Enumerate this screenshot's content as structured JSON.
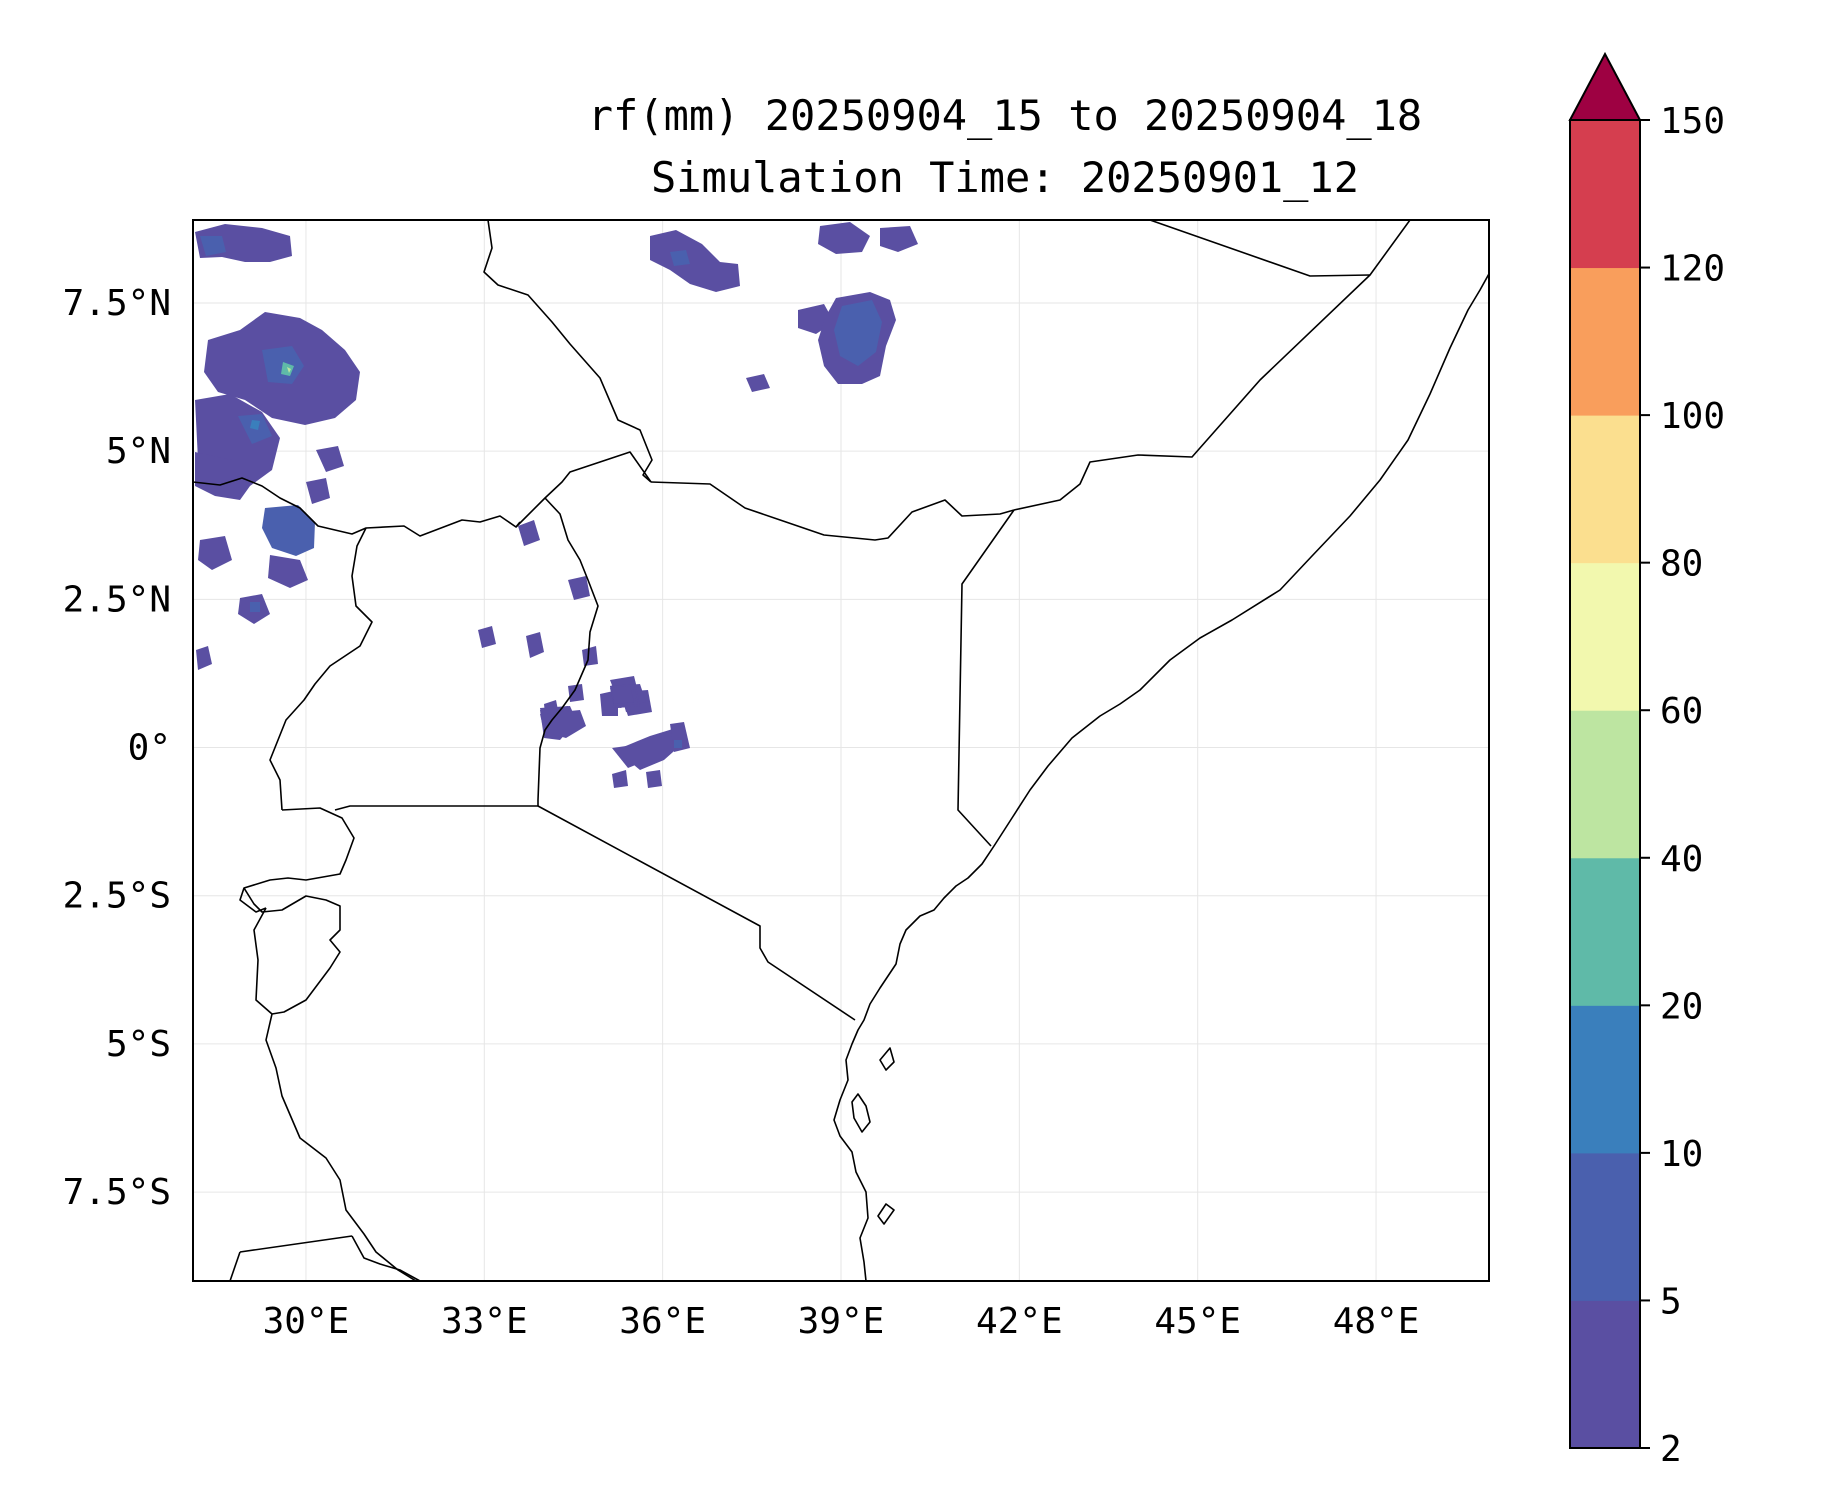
{
  "title": {
    "line1": "rf(mm) 20250904_15 to 20250904_18",
    "line2": "Simulation Time: 20250901_12"
  },
  "map": {
    "variable": "rf(mm)",
    "extent": {
      "lon": [
        28.1,
        49.9
      ],
      "lat": [
        -9.0,
        8.9
      ]
    },
    "x_ticks": [
      {
        "value": 30,
        "label": "30°E"
      },
      {
        "value": 33,
        "label": "33°E"
      },
      {
        "value": 36,
        "label": "36°E"
      },
      {
        "value": 39,
        "label": "39°E"
      },
      {
        "value": 42,
        "label": "42°E"
      },
      {
        "value": 45,
        "label": "45°E"
      },
      {
        "value": 48,
        "label": "48°E"
      }
    ],
    "y_ticks": [
      {
        "value": 7.5,
        "label": "7.5°N"
      },
      {
        "value": 5,
        "label": "5°N"
      },
      {
        "value": 2.5,
        "label": "2.5°N"
      },
      {
        "value": 0,
        "label": "0°"
      },
      {
        "value": -2.5,
        "label": "2.5°S"
      },
      {
        "value": -5,
        "label": "5°S"
      },
      {
        "value": -7.5,
        "label": "7.5°S"
      }
    ],
    "gridlines": true
  },
  "colorbar": {
    "levels": [
      "2",
      "5",
      "10",
      "20",
      "40",
      "60",
      "80",
      "100",
      "120",
      "150"
    ],
    "colors": [
      "#5a4fa2",
      "#4a60ae",
      "#3a7fbc",
      "#5fbaa8",
      "#bde5a1",
      "#f2f8ae",
      "#fbdf8f",
      "#f99e5c",
      "#d53e4f"
    ],
    "extend_max_color": "#9e0142",
    "extend": "max"
  },
  "chart_data": {
    "type": "heatmap",
    "title": "rf(mm) 20250904_15 to 20250904_18\nSimulation Time: 20250901_12",
    "xlabel": "",
    "ylabel": "",
    "xlim": [
      28.1,
      49.9
    ],
    "ylim": [
      -9.0,
      8.9
    ],
    "rain_cells": [
      {
        "lon": 28.7,
        "lat": 8.4,
        "mm": 5
      },
      {
        "lon": 29.4,
        "lat": 6.5,
        "mm": 10
      },
      {
        "lon": 29.7,
        "lat": 6.6,
        "mm": 20
      },
      {
        "lon": 29.3,
        "lat": 5.5,
        "mm": 20
      },
      {
        "lon": 28.7,
        "lat": 4.4,
        "mm": 5
      },
      {
        "lon": 29.9,
        "lat": 3.8,
        "mm": 5
      },
      {
        "lon": 29.2,
        "lat": 2.9,
        "mm": 5
      },
      {
        "lon": 36.2,
        "lat": 8.2,
        "mm": 10
      },
      {
        "lon": 39.1,
        "lat": 7.2,
        "mm": 10
      },
      {
        "lon": 38.2,
        "lat": 7.4,
        "mm": 5
      },
      {
        "lon": 34.5,
        "lat": 2.0,
        "mm": 5
      },
      {
        "lon": 33.8,
        "lat": 2.3,
        "mm": 5
      },
      {
        "lon": 35.4,
        "lat": 0.9,
        "mm": 5
      },
      {
        "lon": 35.7,
        "lat": -0.3,
        "mm": 5
      },
      {
        "lon": 36.3,
        "lat": 0.0,
        "mm": 5
      },
      {
        "lon": 34.5,
        "lat": 0.5,
        "mm": 5
      }
    ]
  }
}
